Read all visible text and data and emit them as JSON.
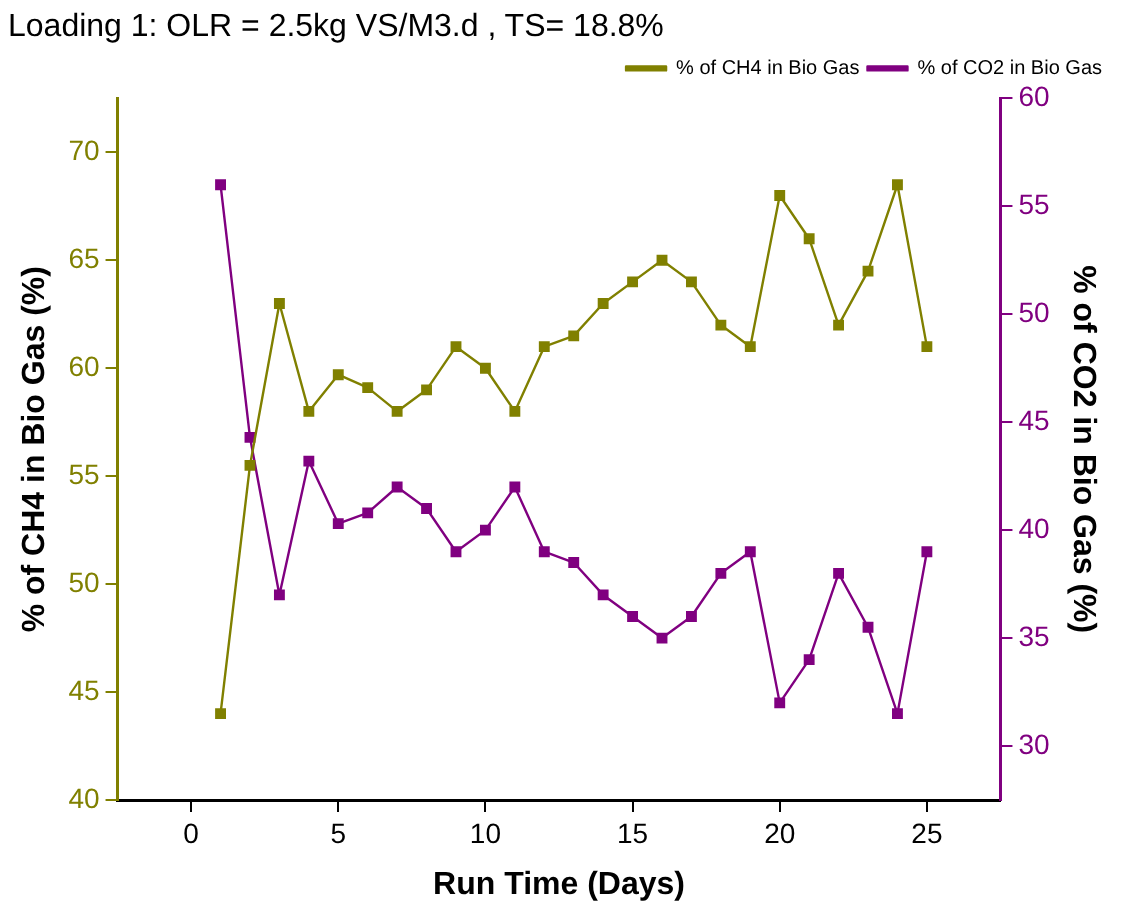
{
  "chart_data": {
    "type": "line",
    "title": "Loading 1: OLR = 2.5kg VS/M3.d , TS= 18.8%",
    "xlabel": "Run Time (Days)",
    "ylabel": "% of CH4 in Bio Gas (%)",
    "y2label": "% of CO2 in Bio Gas (%)",
    "x": [
      1,
      2,
      3,
      4,
      5,
      6,
      7,
      8,
      9,
      10,
      11,
      12,
      13,
      14,
      15,
      16,
      17,
      18,
      19,
      20,
      21,
      22,
      23,
      24,
      25
    ],
    "series": [
      {
        "name": "% of CH4 in Bio Gas",
        "color": "#808000",
        "values": [
          44,
          55.5,
          63,
          58,
          59.7,
          59.1,
          58,
          59,
          61,
          60,
          58,
          61,
          61.5,
          63,
          64,
          65,
          64,
          62,
          61,
          68,
          66,
          62,
          64.5,
          68.5,
          61
        ]
      },
      {
        "name": "% of CO2 in Bio Gas",
        "color": "#800080",
        "axis": "y2",
        "values": [
          56,
          44.3,
          37,
          43.2,
          40.3,
          40.8,
          42,
          41,
          39,
          40,
          42,
          39,
          38.5,
          37,
          36,
          35,
          36,
          38,
          39,
          32,
          34,
          38,
          35.5,
          31.5,
          39
        ]
      }
    ],
    "xlim": [
      -2.5,
      27.5
    ],
    "xticks": [
      0,
      5,
      10,
      15,
      20,
      25
    ],
    "ylim": [
      40,
      72.5
    ],
    "yticks": [
      40,
      45,
      50,
      55,
      60,
      65,
      70
    ],
    "y2lim": [
      27.5,
      60
    ],
    "y2ticks": [
      30,
      35,
      40,
      45,
      50,
      55,
      60
    ],
    "grid": false,
    "legend": "top right",
    "marker": "square",
    "line_style": "solid"
  }
}
